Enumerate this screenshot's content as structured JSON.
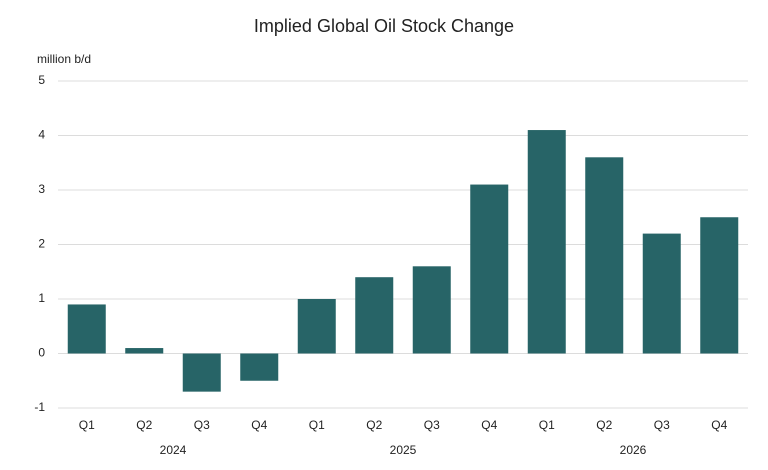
{
  "chart_data": {
    "type": "bar",
    "title": "Implied Global Oil Stock Change",
    "y_axis_label": "million b/d",
    "categories": [
      "Q1",
      "Q2",
      "Q3",
      "Q4",
      "Q1",
      "Q2",
      "Q3",
      "Q4",
      "Q1",
      "Q2",
      "Q3",
      "Q4"
    ],
    "groups": [
      "2024",
      "2025",
      "2026"
    ],
    "values": [
      0.9,
      0.1,
      -0.7,
      -0.5,
      1.0,
      1.4,
      1.6,
      3.1,
      4.1,
      3.6,
      2.2,
      2.5
    ],
    "color": "#276467",
    "ylim": [
      -1,
      5
    ],
    "yticks": [
      -1,
      0,
      1,
      2,
      3,
      4,
      5
    ],
    "grid": true
  }
}
